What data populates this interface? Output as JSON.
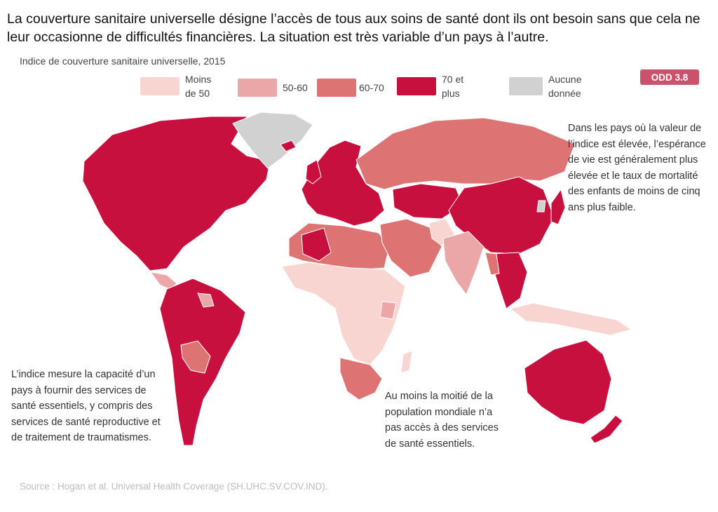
{
  "headline": "La couverture sanitaire universelle désigne l’accès de tous aux soins de santé dont ils ont besoin sans que cela ne leur occasionne de difficultés financières. La situation est très variable d’un pays à l’autre.",
  "map_title": "Indice de couverture sanitaire universelle, 2015",
  "badge": "ODD 3.8",
  "legend": [
    {
      "label": "Moins de 50",
      "color": "#f8d5d0"
    },
    {
      "label": "50-60",
      "color": "#eba7a7"
    },
    {
      "label": "60-70",
      "color": "#de7373"
    },
    {
      "label": "70 et plus",
      "color": "#c8103f"
    },
    {
      "label": "Aucune donnée",
      "color": "#d1d1d1"
    }
  ],
  "notes": {
    "top_right": "Dans les pays où la valeur de l’indice est élevée, l’espérance de vie est généralement plus élevée et le taux de mortalité des enfants de moins de cinq ans plus faible.",
    "bottom_left": "L’indice mesure la capacité d’un pays à fournir des services de santé essentiels, y compris des services de santé reproductive et de traitement de traumatismes.",
    "bottom_center": "Au moins la moitié de la population mondiale n’a pas accès à des services de santé essentiels."
  },
  "source": "Source : Hogan et al. Universal Health Coverage (SH.UHC.SV.COV.IND).",
  "colors": {
    "badge": "#c9536a",
    "ocean": "#ffffff",
    "border": "#ffffff"
  },
  "regions": [
    {
      "name": "Amérique du Nord",
      "category": "70 et plus"
    },
    {
      "name": "Groenland",
      "category": "Aucune donnée"
    },
    {
      "name": "Amérique du Sud",
      "category": "70 et plus"
    },
    {
      "name": "Bolivie / Paraguay",
      "category": "60-70"
    },
    {
      "name": "Europe",
      "category": "70 et plus"
    },
    {
      "name": "Russie",
      "category": "60-70"
    },
    {
      "name": "Chine",
      "category": "70 et plus"
    },
    {
      "name": "Afrique du Nord",
      "category": "60-70"
    },
    {
      "name": "Afrique subsaharienne",
      "category": "Moins de 50"
    },
    {
      "name": "Afrique australe",
      "category": "60-70"
    },
    {
      "name": "Inde",
      "category": "50-60"
    },
    {
      "name": "Moyen-Orient",
      "category": "60-70"
    },
    {
      "name": "Asie du Sud-Est",
      "category": "70 et plus"
    },
    {
      "name": "Indonésie",
      "category": "Moins de 50"
    },
    {
      "name": "Australie",
      "category": "70 et plus"
    },
    {
      "name": "Nouvelle-Zélande",
      "category": "70 et plus"
    },
    {
      "name": "Japon",
      "category": "70 et plus"
    },
    {
      "name": "Madagascar",
      "category": "Moins de 50"
    }
  ]
}
